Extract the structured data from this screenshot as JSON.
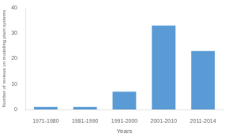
{
  "chart_data": {
    "type": "bar",
    "categories": [
      "1971-1980",
      "1981-1990",
      "1991-2000",
      "2001-2010",
      "2011-2014"
    ],
    "values": [
      1,
      1,
      7,
      33,
      23
    ],
    "color": "#5B9BD5",
    "xlabel": "Years",
    "ylabel": "Number of reviews on modelling plant systems",
    "ylim": [
      0,
      40
    ],
    "yticks": [
      0,
      10,
      20,
      30,
      40
    ],
    "grid": false
  }
}
